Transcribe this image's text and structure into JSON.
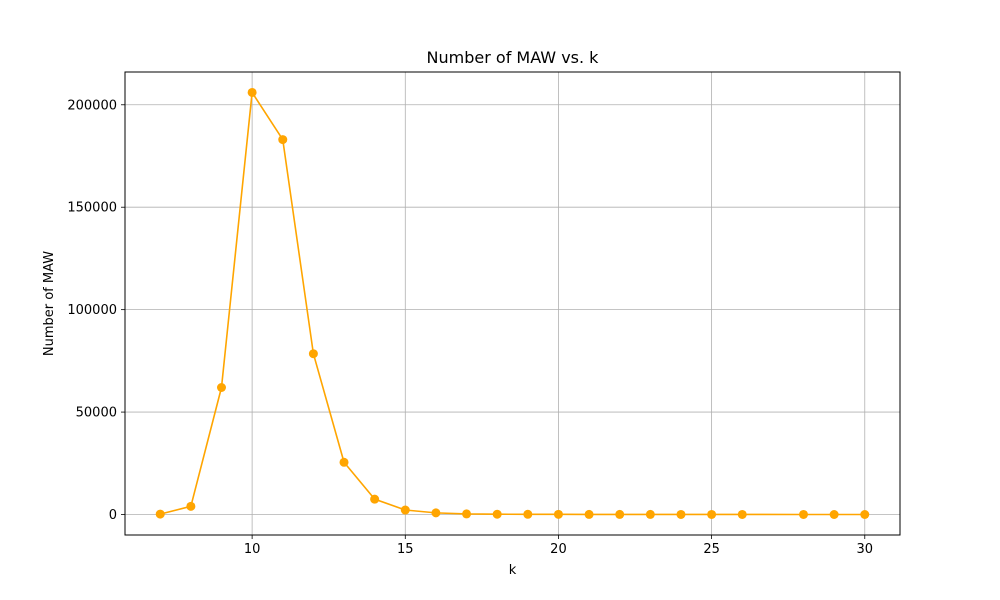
{
  "chart_data": {
    "type": "line",
    "title": "Number of MAW vs. k",
    "xlabel": "k",
    "ylabel": "Number of MAW",
    "xlim": [
      5.85,
      31.15
    ],
    "ylim": [
      -10000,
      216000
    ],
    "xticks": [
      10,
      15,
      20,
      25,
      30
    ],
    "yticks": [
      0,
      50000,
      100000,
      150000,
      200000
    ],
    "grid": true,
    "series": [
      {
        "color": "#FFA500",
        "marker": "circle",
        "x": [
          7,
          8,
          9,
          10,
          11,
          12,
          13,
          14,
          15,
          16,
          17,
          18,
          19,
          20,
          21,
          22,
          23,
          24,
          25,
          26,
          28,
          29,
          30
        ],
        "y": [
          200,
          4000,
          62000,
          206000,
          183000,
          78500,
          25500,
          7500,
          2200,
          800,
          300,
          150,
          100,
          80,
          60,
          50,
          40,
          30,
          20,
          15,
          10,
          8,
          5
        ]
      }
    ]
  }
}
